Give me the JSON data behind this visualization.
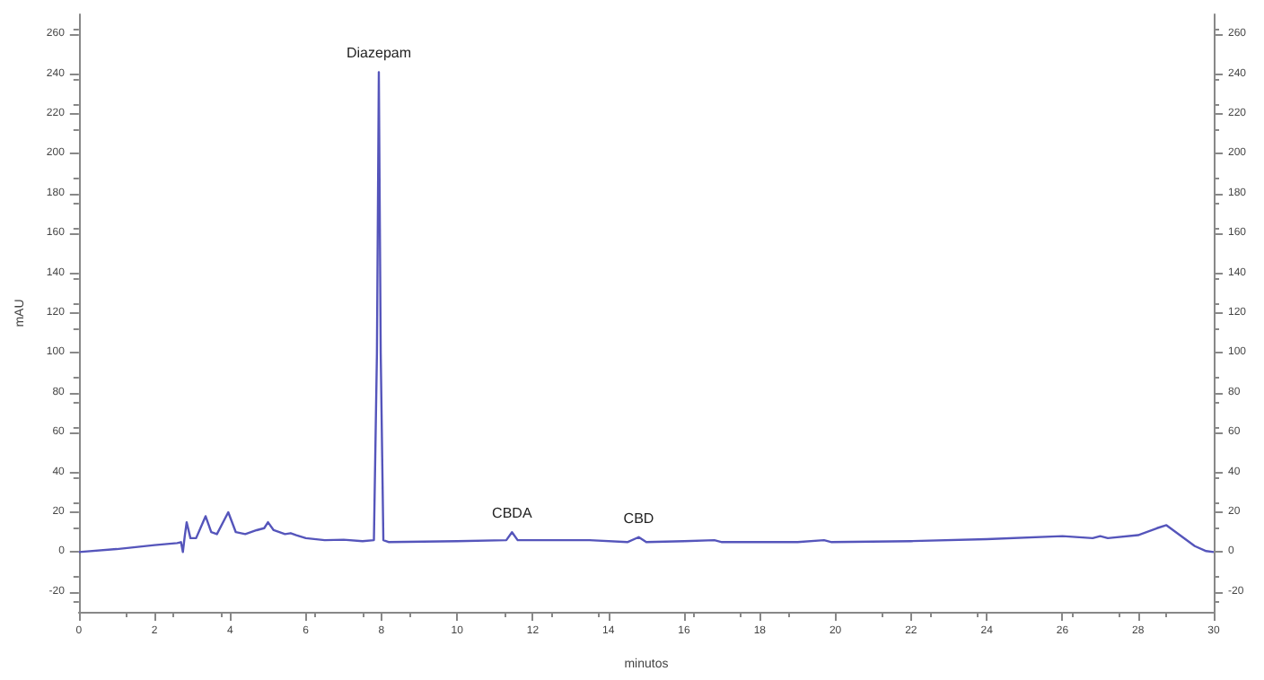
{
  "chart_data": {
    "type": "line",
    "xlabel": "minutos",
    "ylabel": "mAU",
    "annotations": [
      {
        "text": "Diazepam",
        "x": 7.93,
        "y": 241
      },
      {
        "text": "CBDA",
        "x": 11.45,
        "y": 10
      },
      {
        "text": "CBD",
        "x": 14.8,
        "y": 7.5
      }
    ],
    "series": [
      {
        "color": "#5555bb",
        "x": [
          0,
          1,
          2,
          2.6,
          2.7,
          2.75,
          2.8,
          2.85,
          2.95,
          3.1,
          3.35,
          3.5,
          3.65,
          3.95,
          4.15,
          4.4,
          4.7,
          4.9,
          5.0,
          5.15,
          5.3,
          5.45,
          5.6,
          5.75,
          6.0,
          6.5,
          7,
          7.5,
          7.8,
          7.88,
          7.93,
          7.98,
          8.05,
          8.2,
          10,
          11.3,
          11.45,
          11.6,
          12,
          13.5,
          14.5,
          14.8,
          15,
          16,
          16.8,
          17,
          19,
          19.7,
          19.9,
          22,
          24,
          26,
          26.8,
          27,
          27.2,
          28,
          28.5,
          28.75,
          29,
          29.5,
          29.8,
          30
        ],
        "values": [
          0,
          1.5,
          3.5,
          4.5,
          5,
          0,
          8,
          15,
          7,
          7,
          18,
          10,
          9,
          20,
          10,
          9,
          11,
          12,
          15,
          11,
          10,
          9,
          9.5,
          8.5,
          7,
          6,
          6.2,
          5.5,
          6,
          100,
          241,
          100,
          6,
          5,
          5.5,
          6,
          10,
          6,
          6,
          6,
          5,
          7.5,
          5,
          5.5,
          6,
          5,
          5,
          6,
          5,
          5.5,
          6.5,
          8,
          7,
          8,
          7,
          8.5,
          12,
          13.5,
          10,
          3,
          0.5,
          0
        ]
      }
    ],
    "xlim": [
      0,
      30
    ],
    "xticks": [
      0,
      2,
      4,
      6,
      8,
      10,
      12,
      14,
      16,
      18,
      20,
      22,
      24,
      26,
      28,
      30
    ],
    "ylim": [
      -30,
      270
    ],
    "yticks": [
      -20,
      0,
      20,
      40,
      60,
      80,
      100,
      120,
      140,
      160,
      180,
      200,
      220,
      240,
      260
    ],
    "y2lim": [
      -30,
      270
    ],
    "y2ticks": [
      -20,
      0,
      20,
      40,
      60,
      80,
      100,
      120,
      140,
      160,
      180,
      200,
      220,
      240,
      260
    ],
    "grid": false,
    "marker": "none",
    "line_style": "solid"
  }
}
